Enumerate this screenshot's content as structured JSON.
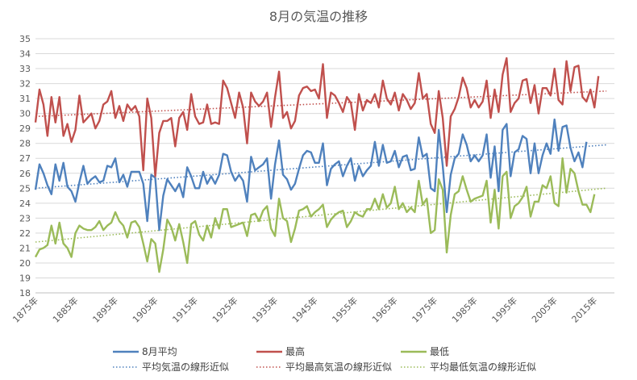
{
  "chart_data": {
    "type": "line",
    "title": "8月の気温の推移",
    "xlabel": "",
    "ylabel": "",
    "ylim": [
      18,
      35
    ],
    "y_ticks": [
      18,
      19,
      20,
      21,
      22,
      23,
      24,
      25,
      26,
      27,
      28,
      29,
      30,
      31,
      32,
      33,
      34,
      35
    ],
    "x_range": [
      1875,
      2020
    ],
    "x_ticks": [
      1875,
      1885,
      1895,
      1905,
      1915,
      1925,
      1935,
      1945,
      1955,
      1965,
      1975,
      1985,
      1995,
      2005,
      2015
    ],
    "x_tick_suffix": "年",
    "grid": true,
    "legend_position": "bottom",
    "series": [
      {
        "name": "8月平均",
        "color": "#4f81bd",
        "style": "solid",
        "x_start": 1875,
        "values": [
          24.9,
          26.6,
          26.0,
          25.2,
          24.6,
          26.6,
          25.5,
          26.7,
          25.1,
          24.8,
          24.1,
          25.4,
          26.5,
          25.3,
          25.6,
          25.8,
          25.4,
          25.5,
          26.5,
          26.4,
          27.0,
          25.4,
          25.9,
          25.1,
          26.1,
          26.1,
          26.1,
          25.3,
          22.8,
          25.9,
          25.7,
          22.2,
          24.5,
          25.6,
          25.2,
          24.8,
          25.3,
          24.4,
          26.4,
          25.8,
          25.0,
          25.0,
          26.1,
          25.3,
          25.8,
          25.3,
          25.9,
          27.3,
          27.2,
          26.1,
          25.5,
          25.9,
          25.5,
          24.1,
          27.1,
          26.2,
          26.4,
          26.6,
          27.0,
          24.3,
          26.6,
          28.2,
          25.9,
          25.6,
          24.9,
          25.3,
          26.3,
          27.2,
          27.5,
          27.4,
          26.7,
          26.7,
          28.0,
          25.2,
          26.3,
          26.6,
          26.8,
          25.8,
          26.5,
          27.0,
          25.5,
          26.5,
          25.8,
          26.2,
          26.5,
          28.1,
          26.5,
          27.9,
          26.7,
          26.8,
          27.5,
          26.4,
          27.1,
          27.2,
          26.2,
          26.3,
          28.4,
          27.1,
          27.3,
          25.0,
          24.8,
          28.9,
          26.5,
          23.4,
          25.9,
          27.0,
          27.3,
          28.6,
          27.9,
          26.8,
          27.2,
          26.8,
          27.2,
          28.6,
          25.7,
          27.8,
          24.8,
          28.9,
          29.3,
          25.8,
          27.4,
          27.6,
          28.5,
          28.3,
          26.0,
          28.0,
          26.0,
          27.2,
          28.0,
          27.3,
          29.6,
          27.5,
          29.1,
          29.2,
          27.7,
          26.8,
          27.4,
          26.4,
          28.1
        ]
      },
      {
        "name": "最高",
        "color": "#c0504d",
        "style": "solid",
        "x_start": 1875,
        "values": [
          29.4,
          31.6,
          30.6,
          28.5,
          31.1,
          29.4,
          31.1,
          28.5,
          29.3,
          28.1,
          28.9,
          31.2,
          29.4,
          29.7,
          30.0,
          29.0,
          29.5,
          30.6,
          30.8,
          31.5,
          29.7,
          30.5,
          29.5,
          30.6,
          30.2,
          30.5,
          29.8,
          26.2,
          31.0,
          29.7,
          25.8,
          28.7,
          29.5,
          29.5,
          29.7,
          27.8,
          29.7,
          30.1,
          28.9,
          31.3,
          29.8,
          29.3,
          29.4,
          30.6,
          29.3,
          29.4,
          29.3,
          32.2,
          31.7,
          30.7,
          29.7,
          31.4,
          30.4,
          28.0,
          31.4,
          30.8,
          30.5,
          30.8,
          31.4,
          29.1,
          31.1,
          32.8,
          29.7,
          30.1,
          29.0,
          29.5,
          31.2,
          31.7,
          31.8,
          31.5,
          31.6,
          31.0,
          33.3,
          29.7,
          31.4,
          31.2,
          30.7,
          30.1,
          31.1,
          30.7,
          28.9,
          31.3,
          30.2,
          30.9,
          30.7,
          31.3,
          30.4,
          32.2,
          31.0,
          30.6,
          31.4,
          30.2,
          31.3,
          30.9,
          30.3,
          30.7,
          32.7,
          31.0,
          31.3,
          29.3,
          28.7,
          31.5,
          29.7,
          26.5,
          29.8,
          30.3,
          31.1,
          32.4,
          31.7,
          30.4,
          30.9,
          30.4,
          30.8,
          32.2,
          29.7,
          31.6,
          30.1,
          32.6,
          33.7,
          30.1,
          30.7,
          31.0,
          32.2,
          32.3,
          30.7,
          31.9,
          30.0,
          31.7,
          31.7,
          31.2,
          33.0,
          30.9,
          30.6,
          33.5,
          31.5,
          33.1,
          33.2,
          31.1,
          30.8,
          31.6,
          30.4,
          32.5
        ]
      },
      {
        "name": "最低",
        "color": "#9bbb59",
        "style": "solid",
        "x_start": 1875,
        "values": [
          20.4,
          20.9,
          21.0,
          21.2,
          22.5,
          21.3,
          22.7,
          21.3,
          21.0,
          20.4,
          22.0,
          22.5,
          22.3,
          22.2,
          22.2,
          22.4,
          22.8,
          22.2,
          22.5,
          22.7,
          23.4,
          22.8,
          22.5,
          21.7,
          22.7,
          22.8,
          22.4,
          21.3,
          20.1,
          21.6,
          21.3,
          19.4,
          20.9,
          22.9,
          22.4,
          21.5,
          22.6,
          21.4,
          20.0,
          22.6,
          22.8,
          21.9,
          21.5,
          22.5,
          21.7,
          23.0,
          22.3,
          23.6,
          23.6,
          22.4,
          22.5,
          22.6,
          22.7,
          21.8,
          23.2,
          23.3,
          22.8,
          23.5,
          23.8,
          22.3,
          21.8,
          24.3,
          23.0,
          22.8,
          21.4,
          22.3,
          23.5,
          23.6,
          23.8,
          23.1,
          23.4,
          23.6,
          23.9,
          22.4,
          22.9,
          23.2,
          23.4,
          23.5,
          22.4,
          22.8,
          23.4,
          23.2,
          23.1,
          23.6,
          23.6,
          24.3,
          23.6,
          24.6,
          23.7,
          24.0,
          25.1,
          23.6,
          24.0,
          23.4,
          23.7,
          23.4,
          25.5,
          23.9,
          24.3,
          22.0,
          22.2,
          25.6,
          24.9,
          20.7,
          23.2,
          24.6,
          24.8,
          25.8,
          24.9,
          24.1,
          24.3,
          24.4,
          24.5,
          25.5,
          22.7,
          24.9,
          22.3,
          25.8,
          26.1,
          23.0,
          23.8,
          24.0,
          24.4,
          25.1,
          23.1,
          24.1,
          24.1,
          25.2,
          25.0,
          25.8,
          24.0,
          23.8,
          27.0,
          24.7,
          26.3,
          26.0,
          24.8,
          23.9,
          23.9,
          23.4,
          24.6
        ]
      },
      {
        "name": "平均気温の線形近似",
        "color": "#4f81bd",
        "style": "dotted",
        "trend": [
          [
            1875,
            25.0
          ],
          [
            2018,
            27.9
          ]
        ]
      },
      {
        "name": "平均最高気温の線形近似",
        "color": "#c0504d",
        "style": "dotted",
        "trend": [
          [
            1875,
            29.8
          ],
          [
            2018,
            31.5
          ]
        ]
      },
      {
        "name": "平均最低気温の線形近似",
        "color": "#9bbb59",
        "style": "dotted",
        "trend": [
          [
            1875,
            21.4
          ],
          [
            2018,
            25.0
          ]
        ]
      }
    ]
  }
}
